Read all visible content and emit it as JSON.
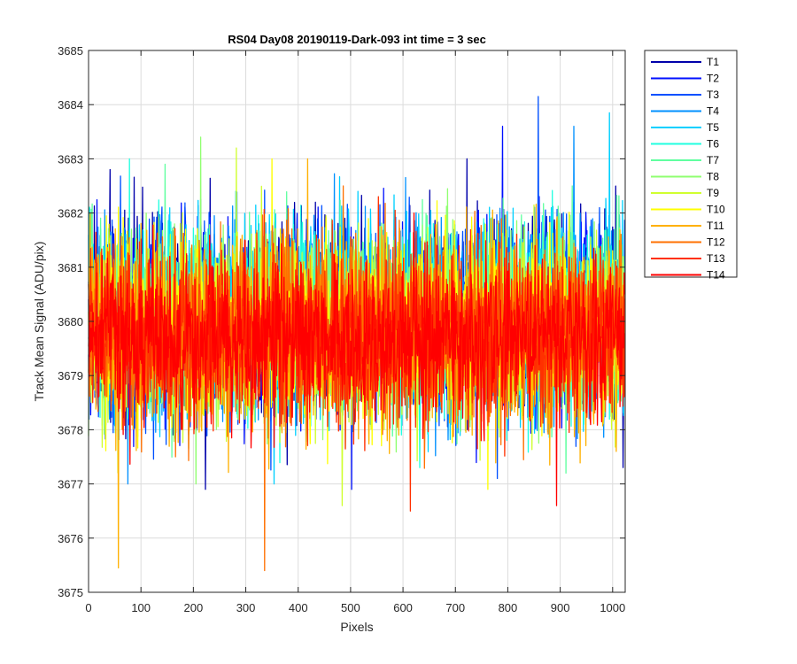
{
  "chart_data": {
    "type": "line",
    "title": "RS04 Day08 20190119-Dark-093 int time = 3 sec",
    "xlabel": "Pixels",
    "ylabel": "Track Mean Signal (ADU/pix)",
    "xlim": [
      0,
      1024
    ],
    "ylim": [
      3675,
      3685
    ],
    "xticks": [
      0,
      100,
      200,
      300,
      400,
      500,
      600,
      700,
      800,
      900,
      1000
    ],
    "yticks": [
      3675,
      3676,
      3677,
      3678,
      3679,
      3680,
      3681,
      3682,
      3683,
      3684,
      3685
    ],
    "grid": true,
    "legend_position": "outside-top-right",
    "points_per_series": 1024,
    "series": [
      {
        "name": "T1",
        "color": "#0000AA",
        "mean": 3680.1,
        "std": 0.95,
        "max": 3683.0,
        "min": 3676.9
      },
      {
        "name": "T2",
        "color": "#0010FF",
        "mean": 3680.1,
        "std": 0.95,
        "max": 3683.6,
        "min": 3676.9
      },
      {
        "name": "T3",
        "color": "#0050FF",
        "mean": 3680.0,
        "std": 0.95,
        "max": 3684.15,
        "min": 3677.1
      },
      {
        "name": "T4",
        "color": "#0090FF",
        "mean": 3680.0,
        "std": 0.95,
        "max": 3683.6,
        "min": 3677.0
      },
      {
        "name": "T5",
        "color": "#00D0FF",
        "mean": 3680.0,
        "std": 0.95,
        "max": 3683.85,
        "min": 3677.0
      },
      {
        "name": "T6",
        "color": "#20FFE0",
        "mean": 3680.0,
        "std": 0.9,
        "max": 3683.0,
        "min": 3677.3
      },
      {
        "name": "T7",
        "color": "#60FFA0",
        "mean": 3679.95,
        "std": 0.9,
        "max": 3682.9,
        "min": 3677.2
      },
      {
        "name": "T8",
        "color": "#90FF70",
        "mean": 3679.9,
        "std": 0.9,
        "max": 3683.4,
        "min": 3677.0
      },
      {
        "name": "T9",
        "color": "#D0FF30",
        "mean": 3679.9,
        "std": 0.9,
        "max": 3683.2,
        "min": 3676.6
      },
      {
        "name": "T10",
        "color": "#FFFF00",
        "mean": 3679.85,
        "std": 0.9,
        "max": 3683.0,
        "min": 3676.9
      },
      {
        "name": "T11",
        "color": "#FFB000",
        "mean": 3679.8,
        "std": 0.9,
        "max": 3683.0,
        "min": 3675.45
      },
      {
        "name": "T12",
        "color": "#FF7000",
        "mean": 3679.8,
        "std": 0.85,
        "max": 3682.5,
        "min": 3675.4
      },
      {
        "name": "T13",
        "color": "#FF3000",
        "mean": 3679.75,
        "std": 0.85,
        "max": 3682.3,
        "min": 3676.5
      },
      {
        "name": "T14",
        "color": "#FF0000",
        "mean": 3679.7,
        "std": 0.8,
        "max": 3682.0,
        "min": 3676.6
      }
    ]
  }
}
